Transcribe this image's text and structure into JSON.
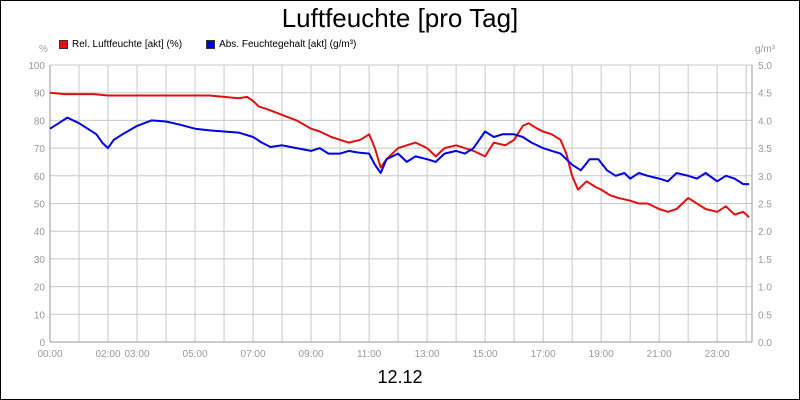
{
  "chart_data": {
    "type": "line",
    "title": "Luftfeuchte [pro Tag]",
    "date_label": "12.12",
    "ylabel_left": "%",
    "ylabel_right": "g/m³",
    "ylim_left": [
      0,
      100
    ],
    "ylim_right": [
      0,
      5
    ],
    "y_ticks_left": [
      "0",
      "10",
      "20",
      "30",
      "40",
      "50",
      "60",
      "70",
      "80",
      "90",
      "100"
    ],
    "y_ticks_right": [
      "0.0",
      "0.5",
      "1.0",
      "1.5",
      "2.0",
      "2.5",
      "3.0",
      "3.5",
      "4.0",
      "4.5",
      "5.0"
    ],
    "x_range_hours": [
      0,
      24.2
    ],
    "x_ticks": [
      {
        "h": 0,
        "label": "00:00"
      },
      {
        "h": 2,
        "label": "02:00"
      },
      {
        "h": 3,
        "label": "03:00"
      },
      {
        "h": 5,
        "label": "05:00"
      },
      {
        "h": 7,
        "label": "07:00"
      },
      {
        "h": 9,
        "label": "09:00"
      },
      {
        "h": 11,
        "label": "11:00"
      },
      {
        "h": 13,
        "label": "13:00"
      },
      {
        "h": 15,
        "label": "15:00"
      },
      {
        "h": 17,
        "label": "17:00"
      },
      {
        "h": 19,
        "label": "19:00"
      },
      {
        "h": 21,
        "label": "21:00"
      },
      {
        "h": 23,
        "label": "23:00"
      }
    ],
    "legend_placement": "top-left",
    "grid": true,
    "colors": {
      "grid": "#c8c8c8",
      "axis": "#999999"
    },
    "series": [
      {
        "name": "Rel. Luftfeuchte [akt] (%)",
        "axis": "left",
        "color": "#e01010",
        "points": [
          [
            0,
            90
          ],
          [
            0.5,
            89.5
          ],
          [
            1,
            89.5
          ],
          [
            1.5,
            89.5
          ],
          [
            2,
            89
          ],
          [
            2.5,
            89
          ],
          [
            3,
            89
          ],
          [
            3.5,
            89
          ],
          [
            4,
            89
          ],
          [
            4.5,
            89
          ],
          [
            5,
            89
          ],
          [
            5.5,
            89
          ],
          [
            6,
            88.5
          ],
          [
            6.5,
            88
          ],
          [
            6.8,
            88.5
          ],
          [
            7,
            87
          ],
          [
            7.2,
            85
          ],
          [
            7.5,
            84
          ],
          [
            8,
            82
          ],
          [
            8.5,
            80
          ],
          [
            9,
            77
          ],
          [
            9.3,
            76
          ],
          [
            9.7,
            74
          ],
          [
            10,
            73
          ],
          [
            10.3,
            72
          ],
          [
            10.7,
            73
          ],
          [
            11,
            75
          ],
          [
            11.2,
            70
          ],
          [
            11.4,
            63
          ],
          [
            11.6,
            66
          ],
          [
            12,
            70
          ],
          [
            12.3,
            71
          ],
          [
            12.6,
            72
          ],
          [
            13,
            70
          ],
          [
            13.3,
            67
          ],
          [
            13.6,
            70
          ],
          [
            14,
            71
          ],
          [
            14.3,
            70
          ],
          [
            14.6,
            69
          ],
          [
            15,
            67
          ],
          [
            15.3,
            72
          ],
          [
            15.7,
            71
          ],
          [
            16,
            73
          ],
          [
            16.3,
            78
          ],
          [
            16.5,
            79
          ],
          [
            16.8,
            77
          ],
          [
            17,
            76
          ],
          [
            17.3,
            75
          ],
          [
            17.6,
            73
          ],
          [
            17.8,
            68
          ],
          [
            18,
            60
          ],
          [
            18.2,
            55
          ],
          [
            18.5,
            58
          ],
          [
            18.8,
            56
          ],
          [
            19,
            55
          ],
          [
            19.3,
            53
          ],
          [
            19.6,
            52
          ],
          [
            20,
            51
          ],
          [
            20.3,
            50
          ],
          [
            20.6,
            50
          ],
          [
            21,
            48
          ],
          [
            21.3,
            47
          ],
          [
            21.6,
            48
          ],
          [
            22,
            52
          ],
          [
            22.3,
            50
          ],
          [
            22.6,
            48
          ],
          [
            23,
            47
          ],
          [
            23.3,
            49
          ],
          [
            23.6,
            46
          ],
          [
            23.9,
            47
          ],
          [
            24.1,
            45
          ]
        ]
      },
      {
        "name": "Abs. Feuchtegehalt [akt] (g/m³)",
        "axis": "right",
        "color": "#0000e0",
        "points": [
          [
            0,
            3.85
          ],
          [
            0.3,
            3.95
          ],
          [
            0.6,
            4.05
          ],
          [
            1,
            3.95
          ],
          [
            1.3,
            3.85
          ],
          [
            1.6,
            3.75
          ],
          [
            1.8,
            3.6
          ],
          [
            2,
            3.5
          ],
          [
            2.2,
            3.65
          ],
          [
            2.5,
            3.75
          ],
          [
            3,
            3.9
          ],
          [
            3.5,
            4.0
          ],
          [
            4,
            3.98
          ],
          [
            4.5,
            3.92
          ],
          [
            5,
            3.85
          ],
          [
            5.5,
            3.82
          ],
          [
            6,
            3.8
          ],
          [
            6.5,
            3.78
          ],
          [
            7,
            3.7
          ],
          [
            7.3,
            3.6
          ],
          [
            7.6,
            3.52
          ],
          [
            8,
            3.55
          ],
          [
            8.5,
            3.5
          ],
          [
            9,
            3.45
          ],
          [
            9.3,
            3.5
          ],
          [
            9.6,
            3.4
          ],
          [
            10,
            3.4
          ],
          [
            10.3,
            3.45
          ],
          [
            10.6,
            3.42
          ],
          [
            11,
            3.4
          ],
          [
            11.2,
            3.2
          ],
          [
            11.4,
            3.05
          ],
          [
            11.6,
            3.3
          ],
          [
            12,
            3.4
          ],
          [
            12.3,
            3.25
          ],
          [
            12.6,
            3.35
          ],
          [
            13,
            3.3
          ],
          [
            13.3,
            3.25
          ],
          [
            13.6,
            3.4
          ],
          [
            14,
            3.45
          ],
          [
            14.3,
            3.4
          ],
          [
            14.6,
            3.5
          ],
          [
            15,
            3.8
          ],
          [
            15.3,
            3.7
          ],
          [
            15.6,
            3.75
          ],
          [
            16,
            3.75
          ],
          [
            16.3,
            3.7
          ],
          [
            16.6,
            3.6
          ],
          [
            17,
            3.5
          ],
          [
            17.3,
            3.45
          ],
          [
            17.6,
            3.4
          ],
          [
            17.8,
            3.3
          ],
          [
            18,
            3.2
          ],
          [
            18.3,
            3.1
          ],
          [
            18.6,
            3.3
          ],
          [
            18.9,
            3.3
          ],
          [
            19.2,
            3.1
          ],
          [
            19.5,
            3.0
          ],
          [
            19.8,
            3.05
          ],
          [
            20,
            2.95
          ],
          [
            20.3,
            3.05
          ],
          [
            20.6,
            3.0
          ],
          [
            21,
            2.95
          ],
          [
            21.3,
            2.9
          ],
          [
            21.6,
            3.05
          ],
          [
            22,
            3.0
          ],
          [
            22.3,
            2.95
          ],
          [
            22.6,
            3.05
          ],
          [
            23,
            2.9
          ],
          [
            23.3,
            3.0
          ],
          [
            23.6,
            2.95
          ],
          [
            23.9,
            2.85
          ],
          [
            24.1,
            2.85
          ]
        ]
      }
    ]
  }
}
